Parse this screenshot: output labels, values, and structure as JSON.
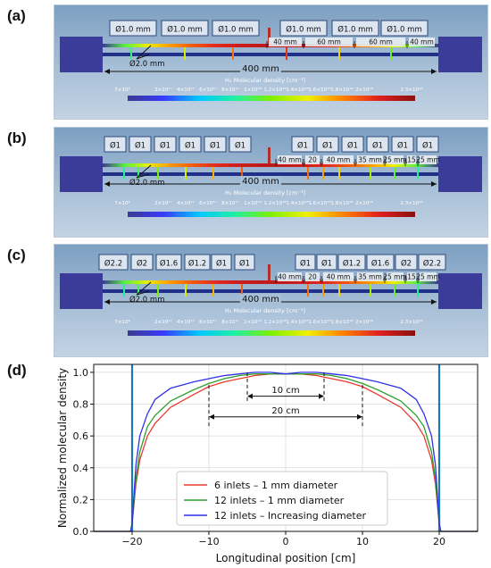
{
  "panels": [
    {
      "label": "(a)",
      "inlets": [
        "Ø1.0 mm",
        "Ø1.0 mm",
        "Ø1.0 mm",
        "Ø1.0 mm",
        "Ø1.0 mm",
        "Ø1.0 mm"
      ],
      "tube_diameter": "Ø2.0 mm",
      "length": "400 mm",
      "spacings": [
        "40 mm",
        "60 mm",
        "60 mm",
        "40 mm"
      ],
      "colorbar_title": "H₂ Molecular density [cm⁻³]",
      "colorbar_ticks": [
        "7×10⁶",
        "2×10¹⁷",
        "4×10¹⁷",
        "6×10¹⁷",
        "8×10¹⁷",
        "1×10¹⁸",
        "1.2×10¹⁸",
        "1.4×10¹⁸",
        "1.6×10¹⁸",
        "1.8×10¹⁸",
        "2×10¹⁸",
        "2.3×10¹⁸"
      ]
    },
    {
      "label": "(b)",
      "inlets": [
        "Ø1",
        "Ø1",
        "Ø1",
        "Ø1",
        "Ø1",
        "Ø1",
        "Ø1",
        "Ø1",
        "Ø1",
        "Ø1",
        "Ø1",
        "Ø1"
      ],
      "tube_diameter": "Ø2.0 mm",
      "length": "400 mm",
      "spacings": [
        "40 mm",
        "20",
        "40 mm",
        "35 mm",
        "25 mm",
        "15",
        "25 mm"
      ],
      "colorbar_title": "H₂ Molecular density [cm⁻³]",
      "colorbar_ticks": [
        "7×10⁶",
        "2×10¹⁷",
        "4×10¹⁷",
        "6×10¹⁷",
        "8×10¹⁷",
        "1×10¹⁸",
        "1.2×10¹⁸",
        "1.4×10¹⁸",
        "1.6×10¹⁸",
        "1.8×10¹⁸",
        "2×10¹⁸",
        "2.3×10¹⁸"
      ]
    },
    {
      "label": "(c)",
      "inlets": [
        "Ø2.2",
        "Ø2",
        "Ø1.6",
        "Ø1.2",
        "Ø1",
        "Ø1",
        "Ø1",
        "Ø1",
        "Ø1.2",
        "Ø1.6",
        "Ø2",
        "Ø2.2"
      ],
      "tube_diameter": "Ø2.0 mm",
      "length": "400 mm",
      "spacings": [
        "40 mm",
        "20",
        "40 mm",
        "35 mm",
        "25 mm",
        "15",
        "25 mm"
      ],
      "colorbar_title": "H₂ Molecular density [cm⁻³]",
      "colorbar_ticks": [
        "7×10⁶",
        "2×10¹⁷",
        "4×10¹⁷",
        "6×10¹⁷",
        "8×10¹⁷",
        "1×10¹⁸",
        "1.2×10¹⁸",
        "1.4×10¹⁸",
        "1.6×10¹⁸",
        "1.8×10¹⁸",
        "2×10¹⁸",
        "2.3×10¹⁸"
      ]
    }
  ],
  "plot": {
    "label": "(d)",
    "xlabel": "Longitudinal position [cm]",
    "ylabel": "Normalized molecular density",
    "annotations": [
      "10 cm",
      "20 cm"
    ]
  },
  "chart_data": {
    "type": "line",
    "xlabel": "Longitudinal position [cm]",
    "ylabel": "Normalized molecular density",
    "xlim": [
      -25,
      25
    ],
    "ylim": [
      0,
      1.05
    ],
    "xticks": [
      -20,
      -10,
      0,
      10,
      20
    ],
    "yticks": [
      0.0,
      0.2,
      0.4,
      0.6,
      0.8,
      1.0
    ],
    "grid": true,
    "legend_position": "lower-center",
    "series": [
      {
        "name": "6 inlets – 1 mm diameter",
        "color": "#e8392f",
        "x": [
          -25,
          -20.2,
          -20,
          -19.5,
          -19,
          -18,
          -17,
          -15,
          -12,
          -10,
          -8,
          -6,
          -4,
          -2,
          0,
          2,
          4,
          6,
          8,
          10,
          12,
          15,
          17,
          18,
          19,
          19.5,
          20,
          20.2,
          25
        ],
        "y": [
          0,
          0,
          0.05,
          0.3,
          0.45,
          0.6,
          0.68,
          0.78,
          0.86,
          0.91,
          0.94,
          0.96,
          0.98,
          0.99,
          0.99,
          0.99,
          0.98,
          0.96,
          0.94,
          0.91,
          0.86,
          0.78,
          0.68,
          0.6,
          0.45,
          0.3,
          0.05,
          0,
          0
        ]
      },
      {
        "name": "12 inlets – 1 mm diameter",
        "color": "#2ca02c",
        "x": [
          -25,
          -20.2,
          -20,
          -19.5,
          -19,
          -18,
          -17,
          -15,
          -12,
          -10,
          -8,
          -6,
          -4,
          -2,
          0,
          2,
          4,
          6,
          8,
          10,
          12,
          15,
          17,
          18,
          19,
          19.5,
          20,
          20.2,
          25
        ],
        "y": [
          0,
          0,
          0.05,
          0.33,
          0.5,
          0.66,
          0.73,
          0.82,
          0.89,
          0.93,
          0.96,
          0.98,
          0.99,
          0.99,
          0.99,
          0.99,
          0.99,
          0.98,
          0.96,
          0.93,
          0.89,
          0.82,
          0.73,
          0.66,
          0.5,
          0.33,
          0.05,
          0,
          0
        ]
      },
      {
        "name": "12 inlets – Increasing diameter",
        "color": "#2f2fe8",
        "x": [
          -25,
          -20.2,
          -20,
          -19.5,
          -19,
          -18,
          -17,
          -15,
          -12,
          -10,
          -8,
          -6,
          -4,
          -2,
          0,
          2,
          4,
          6,
          8,
          10,
          12,
          15,
          17,
          18,
          19,
          19.5,
          20,
          20.2,
          25
        ],
        "y": [
          0,
          0,
          0.05,
          0.42,
          0.6,
          0.74,
          0.83,
          0.9,
          0.94,
          0.96,
          0.98,
          0.99,
          1.0,
          1.0,
          0.99,
          1.0,
          1.0,
          0.99,
          0.98,
          0.96,
          0.94,
          0.9,
          0.83,
          0.74,
          0.6,
          0.42,
          0.05,
          0,
          0
        ]
      }
    ]
  },
  "colors": {
    "tube": "#1f2f8a",
    "end_block": "#3b3c9a",
    "colormap": [
      "#3b3b8f",
      "#3a3aff",
      "#00c8ff",
      "#20f0a0",
      "#7ff000",
      "#f0f000",
      "#ff8000",
      "#e02020",
      "#8a1010"
    ]
  }
}
